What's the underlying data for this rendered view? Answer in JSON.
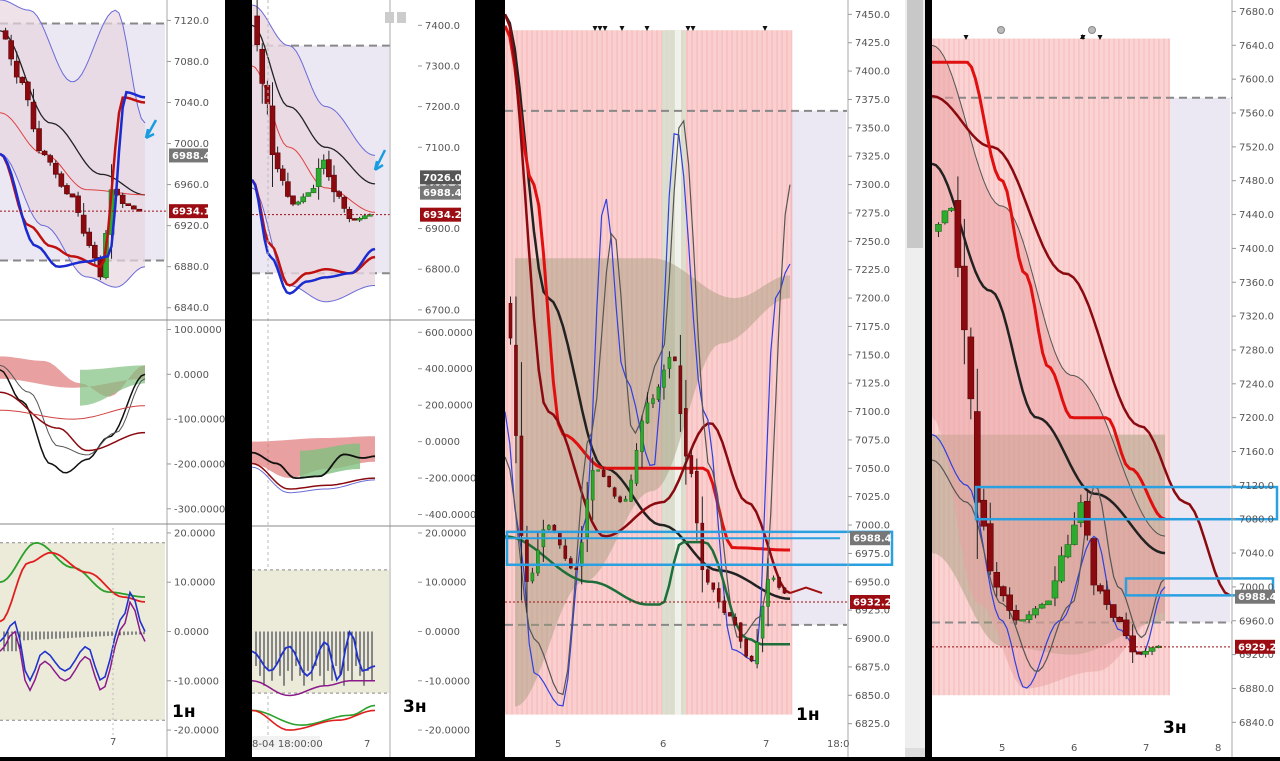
{
  "chart_data": [
    {
      "id": "p1",
      "type": "candlestick",
      "timeframe_label": "1н",
      "price_axis": {
        "ticks": [
          6840.0,
          6880.0,
          6920.0,
          6960.0,
          7000.0,
          7040.0,
          7080.0,
          7120.0
        ],
        "range": [
          6830,
          7135
        ]
      },
      "price_tags": [
        {
          "value": 6988.4,
          "text": "6988.4",
          "color": "#777777"
        },
        {
          "value": 6934.1,
          "text": "6934.1",
          "color": "#9b0d12"
        }
      ],
      "osc1_axis": {
        "ticks": [
          "100.0000",
          "0.0000",
          "-100.0000",
          "-200.0000",
          "-300.0000"
        ],
        "values": [
          100,
          0,
          -100,
          -200,
          -300
        ],
        "range": [
          -325,
          110
        ]
      },
      "osc2_axis": {
        "ticks": [
          "20.0000",
          "10.0000",
          "0.0000",
          "-10.0000",
          "-20.0000"
        ],
        "values": [
          20,
          10,
          0,
          -10,
          -20
        ],
        "range": [
          -21,
          21
        ]
      },
      "x_labels": [
        "7"
      ]
    },
    {
      "id": "p2",
      "type": "candlestick",
      "timeframe_label": "3н",
      "price_axis": {
        "ticks": [
          6700.0,
          6800.0,
          6900.0,
          7000.0,
          7100.0,
          7200.0,
          7300.0,
          7400.0
        ],
        "range": [
          6680,
          7450
        ]
      },
      "price_tags": [
        {
          "value": 7026.0,
          "text": "7026.0",
          "color": "#555555"
        },
        {
          "value": 6988.4,
          "text": "6988.4",
          "color": "#777777"
        },
        {
          "value": 6934.2,
          "text": "6934.2",
          "color": "#9b0d12"
        }
      ],
      "osc1_axis": {
        "ticks": [
          "600.0000",
          "400.0000",
          "200.0000",
          "0.0000",
          "-200.0000",
          "-400.0000"
        ],
        "values": [
          600,
          400,
          200,
          0,
          -200,
          -400
        ],
        "range": [
          -430,
          640
        ]
      },
      "osc2_axis": {
        "ticks": [
          "20.0000",
          "10.0000",
          "0.0000",
          "-10.0000",
          "-20.0000"
        ],
        "values": [
          20,
          10,
          0,
          -10,
          -20
        ],
        "range": [
          -21,
          21
        ]
      },
      "x_labels": [
        "8-04 18:00:00",
        "7"
      ]
    },
    {
      "id": "p3",
      "type": "candlestick",
      "timeframe_label": "1н",
      "price_axis": {
        "ticks": [
          6825.0,
          6850.0,
          6875.0,
          6900.0,
          6925.0,
          6950.0,
          6975.0,
          7000.0,
          7025.0,
          7050.0,
          7075.0,
          7100.0,
          7125.0,
          7150.0,
          7175.0,
          7200.0,
          7225.0,
          7250.0,
          7275.0,
          7300.0,
          7325.0,
          7350.0,
          7375.0,
          7400.0,
          7425.0,
          7450.0
        ],
        "range": [
          6815,
          7460
        ]
      },
      "price_tags": [
        {
          "value": 6988.4,
          "text": "6988.4",
          "color": "#777777"
        },
        {
          "value": 6932.2,
          "text": "6932.2",
          "color": "#9b0d12"
        }
      ],
      "x_labels": [
        "5",
        "6",
        "7",
        "18:0"
      ]
    },
    {
      "id": "p4",
      "type": "candlestick",
      "timeframe_label": "3н",
      "price_axis": {
        "ticks": [
          6840.0,
          6880.0,
          6920.0,
          6960.0,
          7000.0,
          7040.0,
          7080.0,
          7120.0,
          7160.0,
          7200.0,
          7240.0,
          7280.0,
          7320.0,
          7360.0,
          7400.0,
          7440.0,
          7480.0,
          7520.0,
          7560.0,
          7600.0,
          7640.0,
          7680.0
        ],
        "range": [
          6825,
          7690
        ]
      },
      "price_tags": [
        {
          "value": 6988.4,
          "text": "6988.4",
          "color": "#777777"
        },
        {
          "value": 6929.2,
          "text": "6929.2",
          "color": "#9b0d12"
        }
      ],
      "x_labels": [
        "5",
        "6",
        "7",
        "8"
      ]
    }
  ],
  "colors": {
    "bull": "#2eaa2e",
    "bear": "#8b0a10",
    "highlight_box": "#2aa0e0",
    "cloud": "#f6a8a8"
  }
}
